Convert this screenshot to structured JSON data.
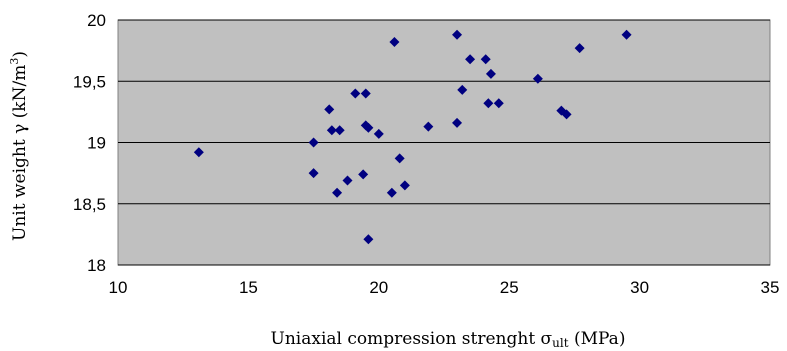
{
  "chart_data": {
    "type": "scatter",
    "xlabel": "Uniaxial compression strenght σ",
    "xlabel_sub": "ult",
    "xlabel_unit": " (MPa)",
    "ylabel": "Unit weight γ (kN/m",
    "ylabel_sup": "3",
    "ylabel_end": ")",
    "xlim": [
      10,
      35
    ],
    "ylim": [
      18,
      20
    ],
    "x_ticks": [
      10,
      15,
      20,
      25,
      30,
      35
    ],
    "x_tick_labels": [
      "10",
      "15",
      "20",
      "25",
      "30",
      "35"
    ],
    "y_ticks": [
      18,
      18.5,
      19,
      19.5,
      20
    ],
    "y_tick_labels": [
      "18",
      "18,5",
      "19",
      "19,5",
      "20"
    ],
    "grid": "horizontal",
    "legend": "none",
    "plot_background": "#c0c0c0",
    "marker_color": "#000080",
    "marker": "diamond",
    "points": [
      {
        "x": 13.1,
        "y": 18.92
      },
      {
        "x": 17.5,
        "y": 19.0
      },
      {
        "x": 17.5,
        "y": 18.75
      },
      {
        "x": 18.1,
        "y": 19.27
      },
      {
        "x": 18.2,
        "y": 19.1
      },
      {
        "x": 18.5,
        "y": 19.1
      },
      {
        "x": 18.4,
        "y": 18.59
      },
      {
        "x": 18.8,
        "y": 18.69
      },
      {
        "x": 19.1,
        "y": 19.4
      },
      {
        "x": 19.5,
        "y": 19.4
      },
      {
        "x": 19.5,
        "y": 19.14
      },
      {
        "x": 19.6,
        "y": 19.12
      },
      {
        "x": 19.4,
        "y": 18.74
      },
      {
        "x": 19.6,
        "y": 18.21
      },
      {
        "x": 20.0,
        "y": 19.07
      },
      {
        "x": 20.6,
        "y": 19.82
      },
      {
        "x": 20.8,
        "y": 18.87
      },
      {
        "x": 20.5,
        "y": 18.59
      },
      {
        "x": 21.0,
        "y": 18.65
      },
      {
        "x": 21.9,
        "y": 19.13
      },
      {
        "x": 23.0,
        "y": 19.88
      },
      {
        "x": 23.0,
        "y": 19.16
      },
      {
        "x": 23.2,
        "y": 19.43
      },
      {
        "x": 23.5,
        "y": 19.68
      },
      {
        "x": 24.1,
        "y": 19.68
      },
      {
        "x": 24.2,
        "y": 19.32
      },
      {
        "x": 24.3,
        "y": 19.56
      },
      {
        "x": 24.6,
        "y": 19.32
      },
      {
        "x": 26.1,
        "y": 19.52
      },
      {
        "x": 27.0,
        "y": 19.26
      },
      {
        "x": 27.2,
        "y": 19.23
      },
      {
        "x": 27.7,
        "y": 19.77
      },
      {
        "x": 29.5,
        "y": 19.88
      }
    ]
  }
}
